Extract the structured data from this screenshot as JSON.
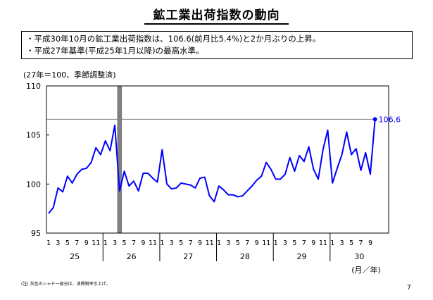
{
  "header": {
    "title": "鉱工業出荷指数の動向",
    "notes": [
      "・平成30年10月の鉱工業出荷指数は、106.6(前月比5.4%)と2か月ぶりの上昇。",
      "・平成27年基準(平成25年1月以降)の最高水準。"
    ],
    "unit_label": "(27年＝100、季節調整済)"
  },
  "footer": {
    "footnote": "(注) 灰色のシャド一部分は、消費税率引上げ。",
    "page_number": "7"
  },
  "chart_data": {
    "type": "line",
    "title": "",
    "xlabel": "(月／年)",
    "ylabel": "",
    "ylim": [
      95,
      110
    ],
    "yticks": [
      "95",
      "100",
      "105",
      "110"
    ],
    "month_tick_labels": [
      "1",
      "3",
      "5",
      "7",
      "9",
      "11"
    ],
    "year_labels": [
      "25",
      "26",
      "27",
      "28",
      "29",
      "30"
    ],
    "grid": false,
    "series_color": "#0000ff",
    "shade_color": "#808080",
    "reference_color": "#808080",
    "shaded_period": {
      "year": "26",
      "months": [
        4
      ]
    },
    "reference_line_value": 106.6,
    "last_value_label": "106.6",
    "series": [
      {
        "name": "",
        "values": [
          [
            97.0,
            97.6,
            99.6,
            99.2,
            100.8,
            100.1,
            101.0,
            101.5,
            101.6,
            102.2,
            103.7,
            103.0
          ],
          [
            104.4,
            103.4,
            106.0,
            99.3,
            101.3,
            99.8,
            100.3,
            99.3,
            101.1,
            101.1,
            100.6,
            100.2
          ],
          [
            103.5,
            100.0,
            99.5,
            99.6,
            100.1,
            100.0,
            99.9,
            99.6,
            100.6,
            100.7,
            98.8,
            98.2
          ],
          [
            99.8,
            99.4,
            98.9,
            98.9,
            98.7,
            98.8,
            99.3,
            99.8,
            100.4,
            100.8,
            102.2,
            101.5
          ],
          [
            100.5,
            100.5,
            101.0,
            102.7,
            101.3,
            102.9,
            102.3,
            103.8,
            101.5,
            100.5,
            103.5,
            105.5
          ],
          [
            100.1,
            101.6,
            103.0,
            105.3,
            103.0,
            103.6,
            101.4,
            103.2,
            101.0,
            106.6
          ]
        ]
      }
    ]
  }
}
